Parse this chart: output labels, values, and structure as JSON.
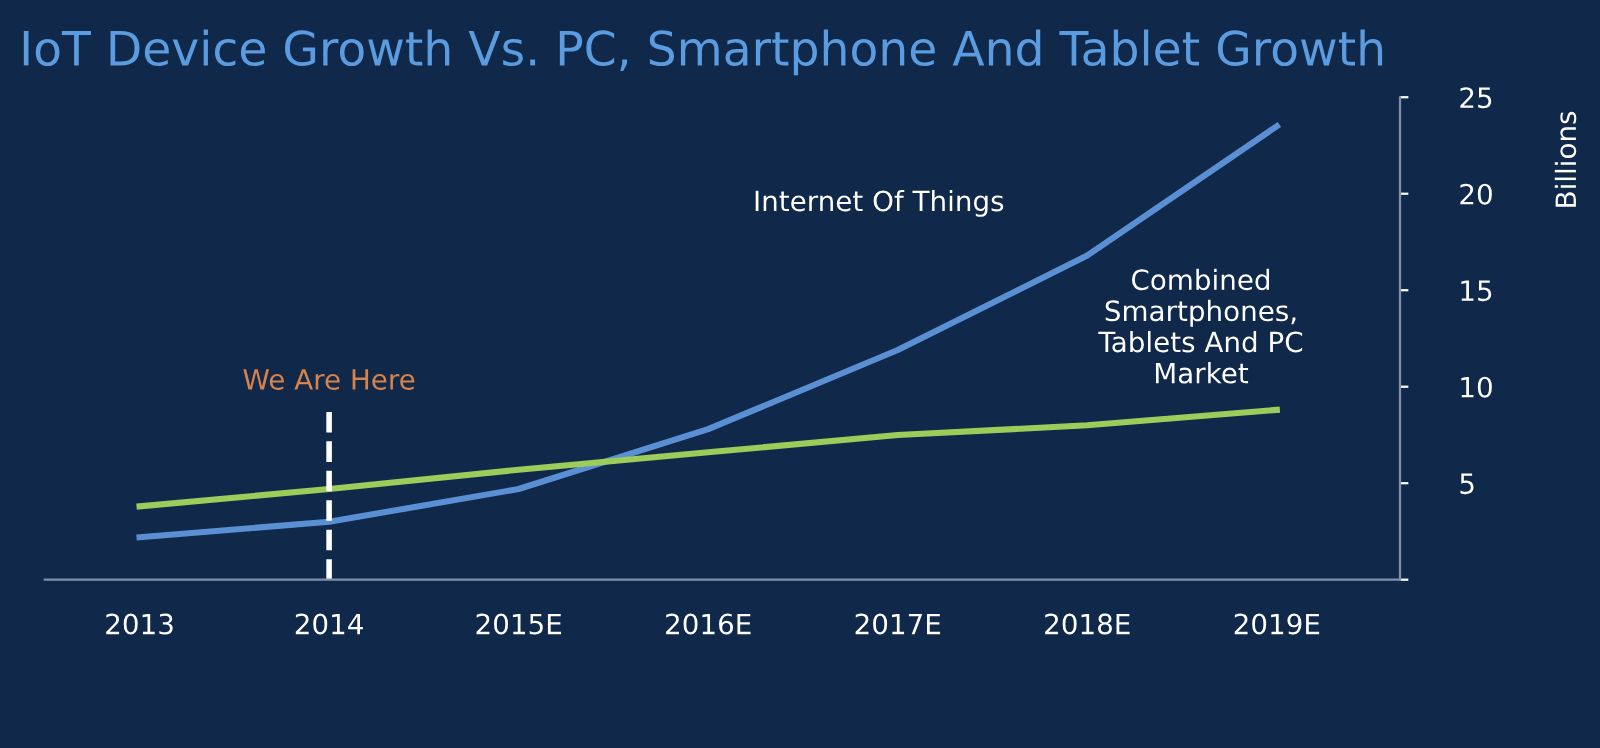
{
  "chart_data": {
    "type": "line",
    "title": "IoT Device Growth Vs. PC, Smartphone And Tablet Growth",
    "ylabel": "Billions",
    "categories": [
      "2013",
      "2014",
      "2015E",
      "2016E",
      "2017E",
      "2018E",
      "2019E"
    ],
    "series": [
      {
        "name": "Internet Of Things",
        "color": "#5b8fd4",
        "values": [
          2.2,
          3.0,
          4.7,
          7.8,
          11.9,
          16.8,
          23.5
        ]
      },
      {
        "name": "Combined\nSmartphones,\nTablets And PC\nMarket",
        "color": "#9ccc5a",
        "values": [
          3.8,
          4.7,
          5.7,
          6.6,
          7.5,
          8.0,
          8.8
        ]
      }
    ],
    "ylim": [
      0,
      25
    ],
    "yticks": [
      {
        "value": 0,
        "label": null
      },
      5,
      10,
      15,
      20,
      25
    ],
    "ref_lines": [
      {
        "axis": "x",
        "value": "2014",
        "label": "We Are Here",
        "color": "#ffffff",
        "line_style": "dashed"
      }
    ],
    "grid": false,
    "legend": false,
    "marker": "none",
    "line_style": "solid"
  }
}
